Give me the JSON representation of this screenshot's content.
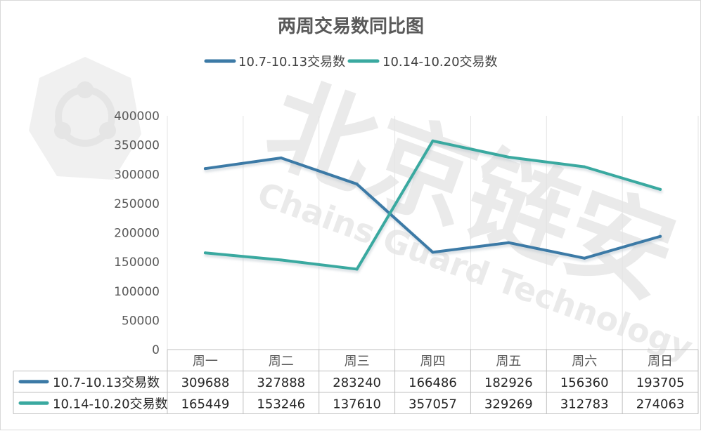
{
  "chart_data": {
    "type": "line",
    "title": "两周交易数同比图",
    "categories": [
      "周一",
      "周二",
      "周三",
      "周四",
      "周五",
      "周六",
      "周日"
    ],
    "series": [
      {
        "name": "10.7-10.13交易数",
        "color": "#3c7aa6",
        "values": [
          309688,
          327888,
          283240,
          166486,
          182926,
          156360,
          193705
        ]
      },
      {
        "name": "10.14-10.20交易数",
        "color": "#3aa9a0",
        "values": [
          165449,
          153246,
          137610,
          357057,
          329269,
          312783,
          274063
        ]
      }
    ],
    "ylim": [
      0,
      400000
    ],
    "yticks": [
      "0",
      "50000",
      "100000",
      "150000",
      "200000",
      "250000",
      "300000",
      "350000",
      "400000"
    ],
    "xlabel": "",
    "ylabel": "",
    "legend": "top",
    "grid": "vertical",
    "data_table": true
  },
  "watermark": {
    "text_cn": "北京链安",
    "text_en": "Chains Guard Technology"
  }
}
